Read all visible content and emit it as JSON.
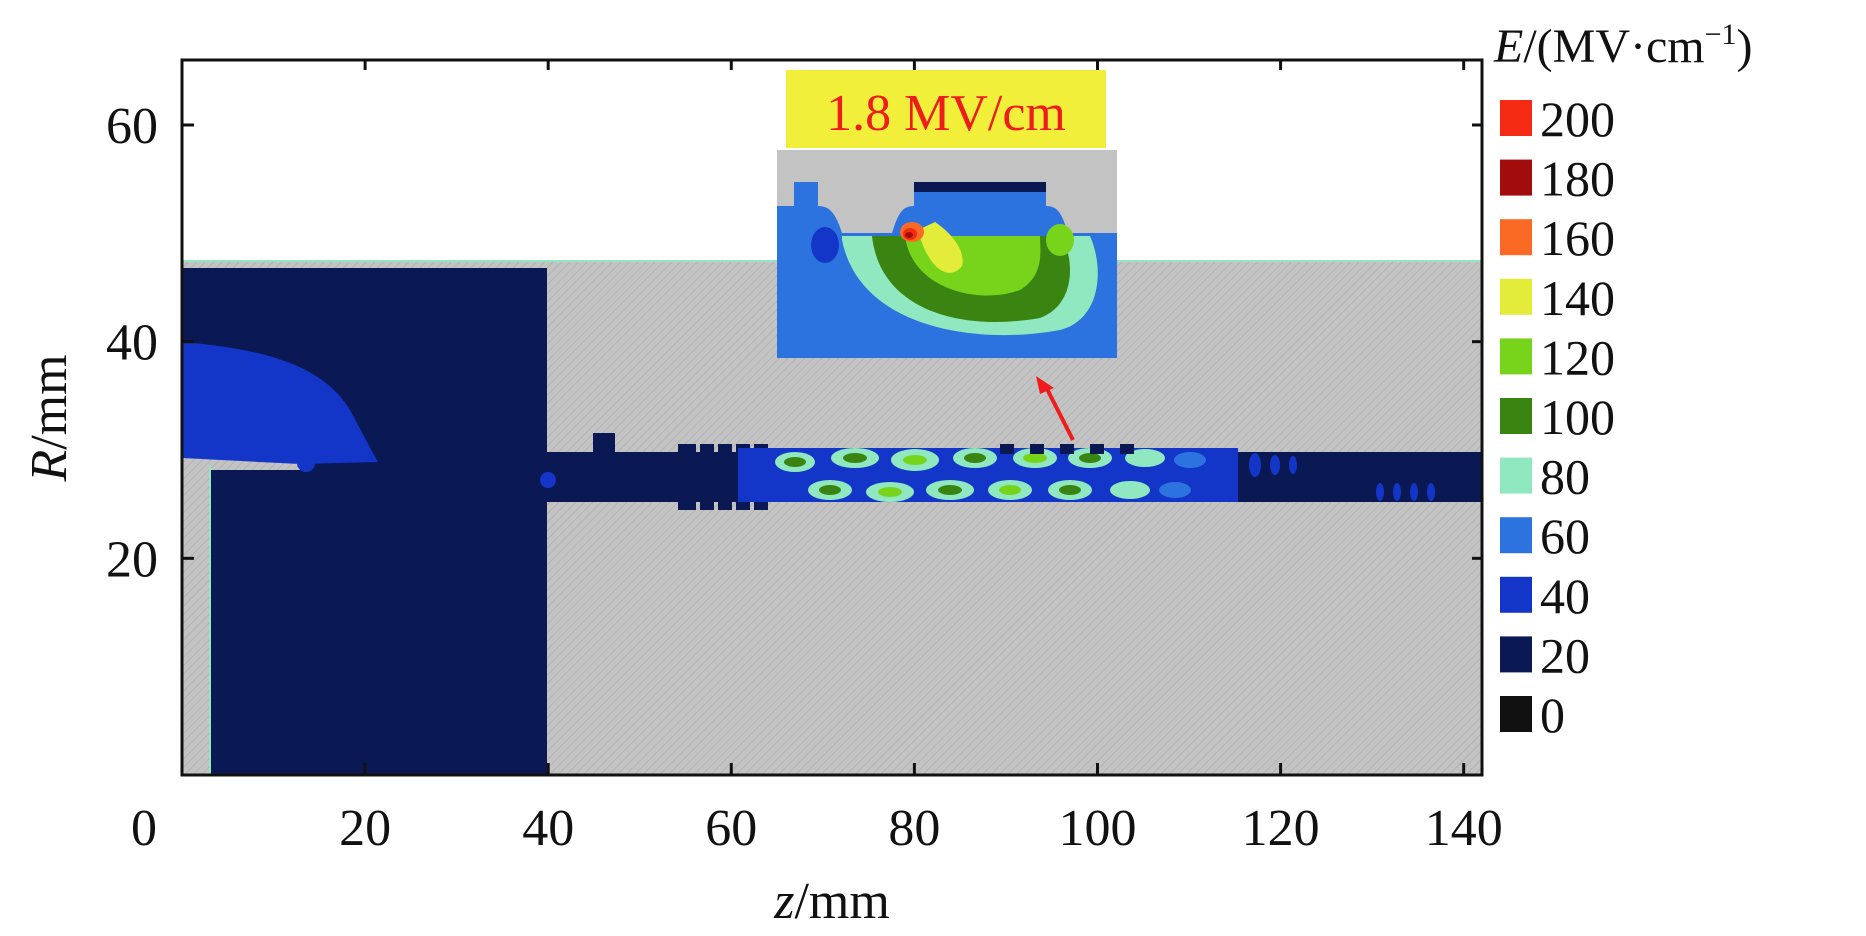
{
  "chart_data": {
    "type": "heatmap",
    "xlabel_var": "z",
    "xlabel_unit": "/mm",
    "ylabel_var": "R",
    "ylabel_unit": "/mm",
    "xlim": [
      0,
      142
    ],
    "ylim": [
      0,
      66
    ],
    "x_ticks": [
      0,
      20,
      40,
      60,
      80,
      100,
      120,
      140
    ],
    "y_ticks": [
      20,
      40,
      60
    ],
    "colorbar": {
      "title_var": "E",
      "title_unit": "/(MV·cm",
      "title_exp": "−1",
      "title_close": ")",
      "levels": [
        {
          "label": "200",
          "color": "#f42a12"
        },
        {
          "label": "180",
          "color": "#a30c0c"
        },
        {
          "label": "160",
          "color": "#fb6a24"
        },
        {
          "label": "140",
          "color": "#e3ec38"
        },
        {
          "label": "120",
          "color": "#78d41a"
        },
        {
          "label": "100",
          "color": "#3a8412"
        },
        {
          "label": "80",
          "color": "#8fe8bf"
        },
        {
          "label": "60",
          "color": "#2d73e0"
        },
        {
          "label": "40",
          "color": "#1436c8"
        },
        {
          "label": "20",
          "color": "#0a1854"
        },
        {
          "label": "0",
          "color": "#111111"
        }
      ]
    },
    "annotation": {
      "text": "1.8 MV/cm",
      "color": "#ee1c1c",
      "background": "#f2ef3a"
    },
    "metal_color": "#bdbdbd"
  }
}
